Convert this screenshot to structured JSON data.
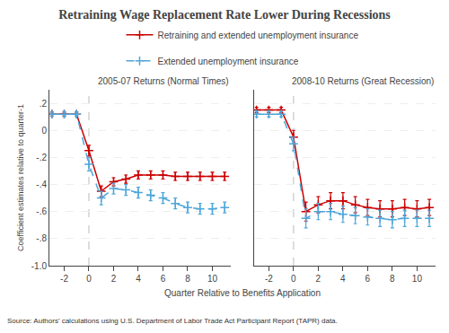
{
  "title": "Retraining Wage Replacement Rate Lower During Recessions",
  "xlabel": "Quarter Relative to Benefits Application",
  "source": "Source: Authors' calculations using U.S. Department of Labor Trade Act Participant Report (TAPR) data.",
  "legend": "top",
  "chart_data": [
    {
      "type": "line",
      "title": "2005-07 Returns (Normal Times)",
      "ylabel": "Coefficient estimates relative to quarter-1",
      "x": [
        -3,
        -2,
        -1,
        0,
        1,
        2,
        3,
        4,
        5,
        6,
        7,
        8,
        9,
        10,
        11
      ],
      "xlim": [
        -3.2,
        11.5
      ],
      "xticks": [
        -2,
        0,
        2,
        4,
        6,
        8,
        10
      ],
      "ylim": [
        -1.0,
        0.3
      ],
      "yticks": [
        {
          "value": 0.2,
          "label": ".2"
        },
        0,
        {
          "value": -0.2,
          "label": "-.2"
        },
        {
          "value": -0.4,
          "label": "-.4"
        },
        {
          "value": -0.6,
          "label": "-.6"
        },
        {
          "value": -0.8,
          "label": "-.8"
        },
        {
          "value": -1.0,
          "label": "-1.0"
        }
      ],
      "grid": true,
      "vline_x": 0,
      "series": [
        {
          "name": "Retraining and extended unemployment insurance",
          "color": "#cc0000",
          "line_style": "solid",
          "marker": "plus",
          "values": [
            0.12,
            0.12,
            0.12,
            -0.15,
            -0.45,
            -0.38,
            -0.36,
            -0.33,
            -0.33,
            -0.33,
            -0.34,
            -0.34,
            -0.34,
            -0.34,
            -0.34
          ],
          "errors": [
            0.015,
            0.015,
            0.015,
            0.04,
            0.04,
            0.03,
            0.03,
            0.03,
            0.03,
            0.03,
            0.03,
            0.03,
            0.03,
            0.03,
            0.03
          ]
        },
        {
          "name": "Extended unemployment insurance",
          "color": "#4da6d9",
          "line_style": "dashed",
          "marker": "plus",
          "values": [
            0.12,
            0.12,
            0.12,
            -0.25,
            -0.5,
            -0.43,
            -0.44,
            -0.46,
            -0.48,
            -0.5,
            -0.54,
            -0.57,
            -0.58,
            -0.58,
            -0.57
          ],
          "errors": [
            0.015,
            0.015,
            0.015,
            0.05,
            0.05,
            0.04,
            0.04,
            0.04,
            0.04,
            0.04,
            0.04,
            0.04,
            0.04,
            0.04,
            0.04
          ]
        }
      ]
    },
    {
      "type": "line",
      "title": "2008-10 Returns (Great Recession)",
      "x": [
        -3,
        -2,
        -1,
        0,
        1,
        2,
        3,
        4,
        5,
        6,
        7,
        8,
        9,
        10,
        11
      ],
      "xlim": [
        -3.2,
        11.5
      ],
      "xticks": [
        -2,
        0,
        2,
        4,
        6,
        8,
        10
      ],
      "ylim": [
        -1.0,
        0.3
      ],
      "yticks": [
        {
          "value": 0.2,
          "label": ".2"
        },
        0,
        {
          "value": -0.2,
          "label": "-.2"
        },
        {
          "value": -0.4,
          "label": "-.4"
        },
        {
          "value": -0.6,
          "label": "-.6"
        },
        {
          "value": -0.8,
          "label": "-.8"
        },
        {
          "value": -1.0,
          "label": "-1.0"
        }
      ],
      "grid": true,
      "vline_x": 0,
      "tick_labels": "x",
      "series": [
        {
          "name": "Retraining and extended unemployment insurance",
          "color": "#cc0000",
          "line_style": "solid",
          "marker": "plus",
          "values": [
            0.15,
            0.15,
            0.15,
            -0.05,
            -0.6,
            -0.55,
            -0.52,
            -0.52,
            -0.55,
            -0.57,
            -0.58,
            -0.58,
            -0.57,
            -0.58,
            -0.57
          ],
          "errors": [
            0.02,
            0.02,
            0.02,
            0.05,
            0.07,
            0.06,
            0.06,
            0.06,
            0.06,
            0.06,
            0.06,
            0.06,
            0.06,
            0.06,
            0.06
          ]
        },
        {
          "name": "Extended unemployment insurance",
          "color": "#4da6d9",
          "line_style": "dashed",
          "marker": "plus",
          "values": [
            0.12,
            0.12,
            0.12,
            -0.1,
            -0.65,
            -0.6,
            -0.6,
            -0.62,
            -0.63,
            -0.64,
            -0.65,
            -0.66,
            -0.65,
            -0.65,
            -0.65
          ],
          "errors": [
            0.02,
            0.02,
            0.02,
            0.05,
            0.07,
            0.06,
            0.06,
            0.06,
            0.06,
            0.06,
            0.06,
            0.06,
            0.06,
            0.06,
            0.06
          ]
        }
      ]
    }
  ]
}
